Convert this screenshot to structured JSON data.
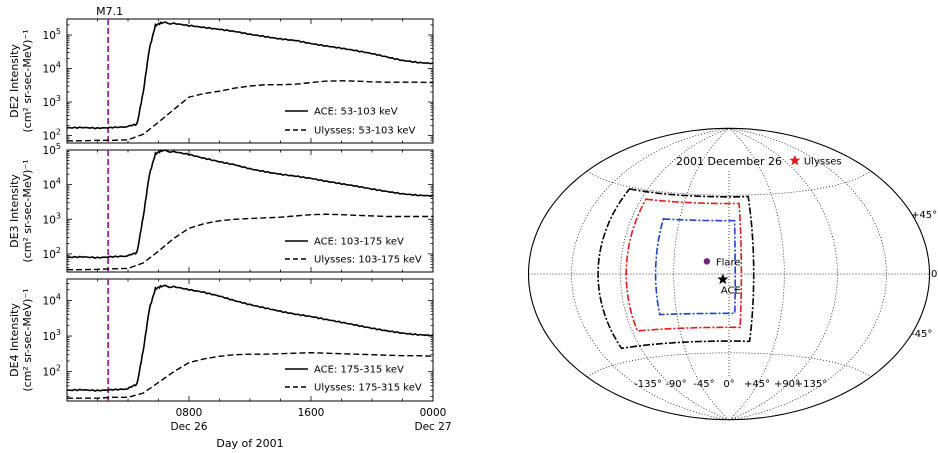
{
  "chart_data": [
    {
      "type": "line",
      "panel": "DE2",
      "ylabel_line1": "DE2 Intensity",
      "ylabel_line2": "(cm² sr-sec-MeV)⁻¹",
      "yscale": "log",
      "ylim": [
        60,
        300000
      ],
      "yticks": [
        {
          "value": 100,
          "base": "10",
          "exp": "2"
        },
        {
          "value": 1000,
          "base": "10",
          "exp": "3"
        },
        {
          "value": 10000,
          "base": "10",
          "exp": "4"
        },
        {
          "value": 100000,
          "base": "10",
          "exp": "5"
        }
      ],
      "event_hour": 2.7,
      "event_label": "M7.1",
      "series": [
        {
          "name": "ACE: 53-103 keV",
          "style": "solid",
          "x": [
            0,
            1,
            2,
            3,
            4,
            4.6,
            5.0,
            5.4,
            5.8,
            6.2,
            7,
            8,
            9,
            10,
            11,
            12,
            13,
            14,
            15,
            16,
            17,
            18,
            19,
            20,
            21,
            22,
            23,
            24
          ],
          "y": [
            170,
            180,
            175,
            185,
            190,
            220,
            2000,
            40000,
            200000,
            230000,
            210000,
            180000,
            160000,
            145000,
            130000,
            110000,
            95000,
            80000,
            70000,
            55000,
            45000,
            38000,
            32000,
            27000,
            22000,
            18000,
            16000,
            15000
          ]
        },
        {
          "name": "Ulysses: 53-103 keV",
          "style": "dashed",
          "x": [
            0,
            1,
            2,
            3,
            4,
            5,
            6,
            7,
            8,
            9,
            10,
            11,
            12,
            13,
            14,
            15,
            16,
            17,
            18,
            19,
            20,
            21,
            22,
            23,
            24
          ],
          "y": [
            70,
            70,
            72,
            72,
            75,
            110,
            250,
            600,
            1400,
            1800,
            2100,
            2600,
            3000,
            3300,
            3300,
            3400,
            3800,
            4200,
            4300,
            4200,
            4000,
            3900,
            3900,
            3900,
            3800
          ]
        }
      ]
    },
    {
      "type": "line",
      "panel": "DE3",
      "ylabel_line1": "DE3 Intensity",
      "ylabel_line2": "(cm² sr-sec-MeV)⁻¹",
      "yscale": "log",
      "ylim": [
        30,
        100000
      ],
      "yticks": [
        {
          "value": 100,
          "base": "10",
          "exp": "2"
        },
        {
          "value": 1000,
          "base": "10",
          "exp": "3"
        },
        {
          "value": 10000,
          "base": "10",
          "exp": "4"
        },
        {
          "value": 100000,
          "base": "10",
          "exp": "5"
        }
      ],
      "event_hour": 2.7,
      "series": [
        {
          "name": "ACE: 103-175 keV",
          "style": "solid",
          "x": [
            0,
            1,
            2,
            3,
            4,
            4.6,
            5.0,
            5.4,
            5.8,
            6.2,
            7,
            8,
            9,
            10,
            11,
            12,
            13,
            14,
            15,
            16,
            17,
            18,
            19,
            20,
            21,
            22,
            23,
            24
          ],
          "y": [
            80,
            85,
            82,
            88,
            90,
            110,
            1200,
            20000,
            80000,
            95000,
            85000,
            70000,
            55000,
            45000,
            38000,
            30000,
            25000,
            21000,
            18000,
            15000,
            12000,
            10000,
            8500,
            7200,
            6300,
            5600,
            5200,
            5000
          ]
        },
        {
          "name": "Ulysses: 103-175 keV",
          "style": "dashed",
          "x": [
            0,
            1,
            2,
            3,
            4,
            5,
            6,
            7,
            8,
            9,
            10,
            11,
            12,
            13,
            14,
            15,
            16,
            17,
            18,
            19,
            20,
            21,
            22,
            23,
            24
          ],
          "y": [
            35,
            35,
            36,
            37,
            38,
            55,
            120,
            280,
            550,
            750,
            900,
            1000,
            1050,
            1100,
            1150,
            1250,
            1350,
            1400,
            1350,
            1300,
            1250,
            1200,
            1200,
            1200,
            1200
          ]
        }
      ]
    },
    {
      "type": "line",
      "panel": "DE4",
      "ylabel_line1": "DE4 Intensity",
      "ylabel_line2": "(cm² sr-sec-MeV)⁻¹",
      "yscale": "log",
      "ylim": [
        15,
        40000
      ],
      "yticks": [
        {
          "value": 100,
          "base": "10",
          "exp": "2"
        },
        {
          "value": 1000,
          "base": "10",
          "exp": "3"
        },
        {
          "value": 10000,
          "base": "10",
          "exp": "4"
        }
      ],
      "event_hour": 2.7,
      "xticks": [
        {
          "value": 8,
          "line1": "0800",
          "line2": "Dec 26"
        },
        {
          "value": 16,
          "line1": "1600",
          "line2": ""
        },
        {
          "value": 24,
          "line1": "0000",
          "line2": "Dec 27"
        }
      ],
      "xlabel": "Day of 2001",
      "series": [
        {
          "name": "ACE: 175-315 keV",
          "style": "solid",
          "x": [
            0,
            1,
            2,
            3,
            4,
            4.6,
            5.0,
            5.4,
            5.8,
            6.2,
            7,
            8,
            9,
            10,
            11,
            12,
            13,
            14,
            15,
            16,
            17,
            18,
            19,
            20,
            21,
            22,
            23,
            24
          ],
          "y": [
            30,
            32,
            31,
            33,
            34,
            45,
            400,
            6000,
            22000,
            25000,
            23000,
            19000,
            16000,
            13000,
            10000,
            8000,
            6500,
            5200,
            4200,
            3500,
            2800,
            2300,
            1900,
            1600,
            1400,
            1250,
            1150,
            1100
          ]
        },
        {
          "name": "Ulysses: 175-315 keV",
          "style": "dashed",
          "x": [
            0,
            1,
            2,
            3,
            4,
            5,
            6,
            7,
            8,
            9,
            10,
            11,
            12,
            13,
            14,
            15,
            16,
            17,
            18,
            19,
            20,
            21,
            22,
            23,
            24
          ],
          "y": [
            18,
            18,
            18,
            19,
            19,
            25,
            50,
            100,
            180,
            230,
            270,
            300,
            310,
            310,
            320,
            330,
            340,
            330,
            320,
            310,
            300,
            290,
            280,
            280,
            270
          ]
        }
      ]
    },
    {
      "type": "scatter",
      "title": "2001 December 26",
      "projection": "Hammer-Aitoff (longitude/latitude)",
      "lon_ticks": [
        "-135°",
        "-90°",
        "-45°",
        "0°",
        "+45°",
        "+90°",
        "+135°"
      ],
      "lat_ticks": [
        "+45°",
        "0",
        "-45°"
      ],
      "points": [
        {
          "label": "Ulysses",
          "lon": 105,
          "lat": 62,
          "color": "#e31a1c",
          "marker": "star"
        },
        {
          "label": "Flare",
          "lon": -18,
          "lat": 7,
          "color": "#7b1f7b",
          "marker": "dot"
        },
        {
          "label": "ACE",
          "lon": -5,
          "lat": -3,
          "color": "#000000",
          "marker": "star"
        }
      ],
      "boxes": [
        {
          "color": "#000000",
          "lon": [
            -110,
            20
          ],
          "lat": [
            -38,
            44
          ]
        },
        {
          "color": "#e31a1c",
          "lon": [
            -85,
            10
          ],
          "lat": [
            -30,
            40
          ]
        },
        {
          "color": "#1f3fd1",
          "lon": [
            -60,
            5
          ],
          "lat": [
            -22,
            30
          ]
        }
      ]
    }
  ],
  "colors": {
    "event_line": "#9b1f9b",
    "ulysses": "#e31a1c",
    "flare": "#7b1f7b",
    "ace": "#000000",
    "blue_box": "#1f3fd1"
  }
}
